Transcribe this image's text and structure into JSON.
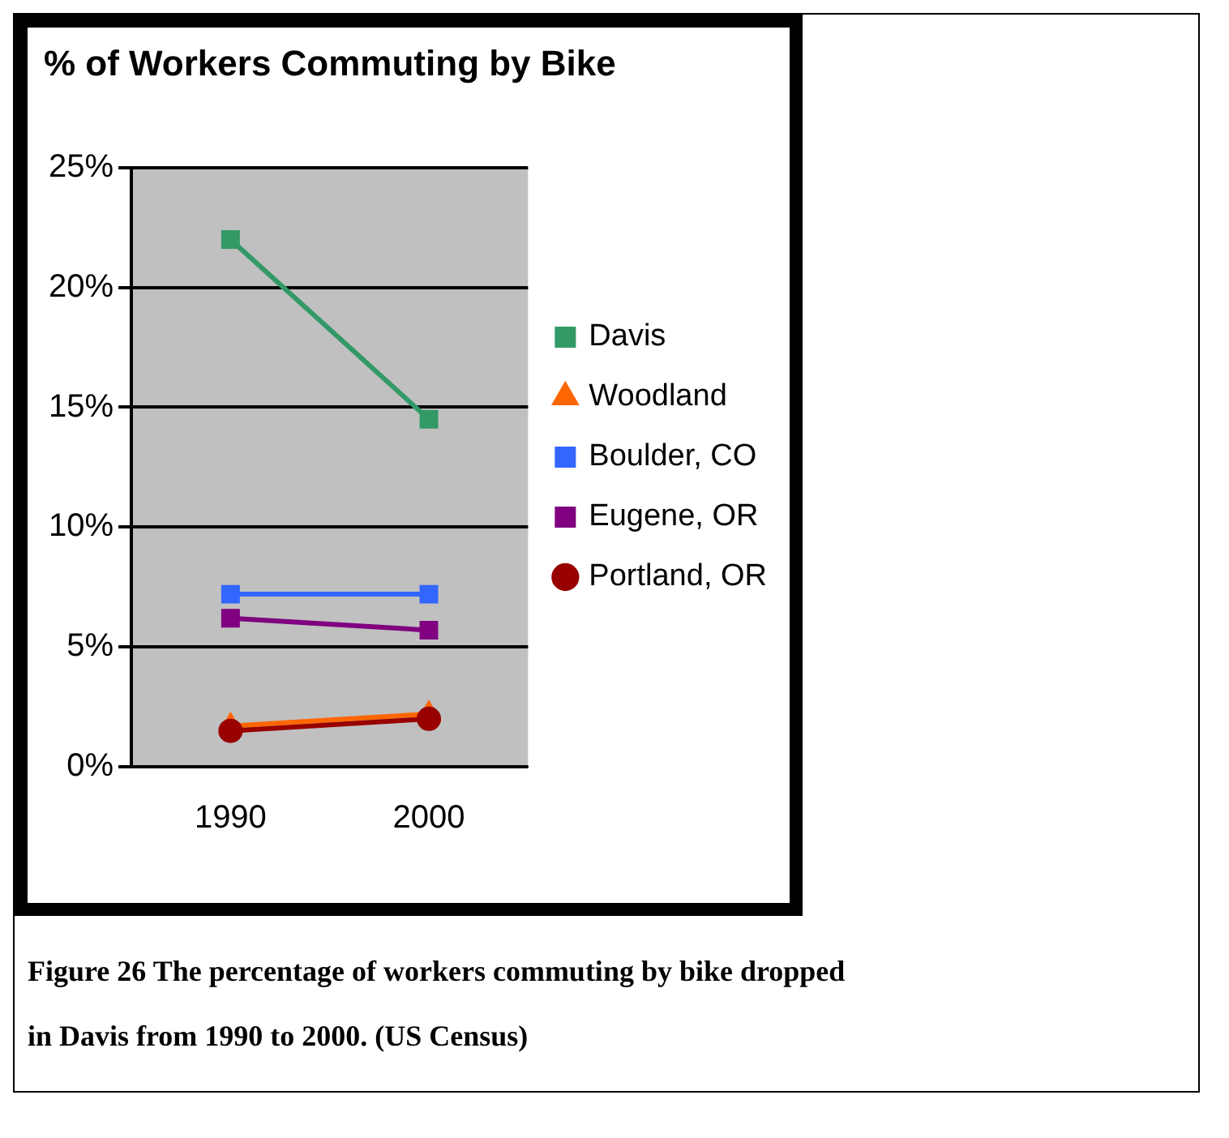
{
  "chart_data": {
    "type": "line",
    "title": "% of Workers Commuting by Bike",
    "categories": [
      "1990",
      "2000"
    ],
    "series": [
      {
        "name": "Davis",
        "color": "#339966",
        "marker": "square",
        "values": [
          22,
          14.5
        ]
      },
      {
        "name": "Woodland",
        "color": "#ff6600",
        "marker": "triangle",
        "values": [
          1.7,
          2.2
        ]
      },
      {
        "name": "Boulder, CO",
        "color": "#3366ff",
        "marker": "square",
        "values": [
          7.2,
          7.2
        ]
      },
      {
        "name": "Eugene, OR",
        "color": "#800080",
        "marker": "square",
        "values": [
          6.2,
          5.7
        ]
      },
      {
        "name": "Portland, OR",
        "color": "#990000",
        "marker": "circle",
        "values": [
          1.5,
          2
        ]
      }
    ],
    "ylim": [
      0,
      25
    ],
    "yticks": [
      {
        "value": 0,
        "label": "0%"
      },
      {
        "value": 5,
        "label": "5%"
      },
      {
        "value": 10,
        "label": "10%"
      },
      {
        "value": 15,
        "label": "15%"
      },
      {
        "value": 20,
        "label": "20%"
      },
      {
        "value": 25,
        "label": "25%"
      }
    ],
    "grid": "y",
    "legend": "right",
    "annotations": [
      "Figure 26 The percentage of workers commuting by bike dropped in Davis from 1990 to 2000.   (US Census)"
    ]
  }
}
